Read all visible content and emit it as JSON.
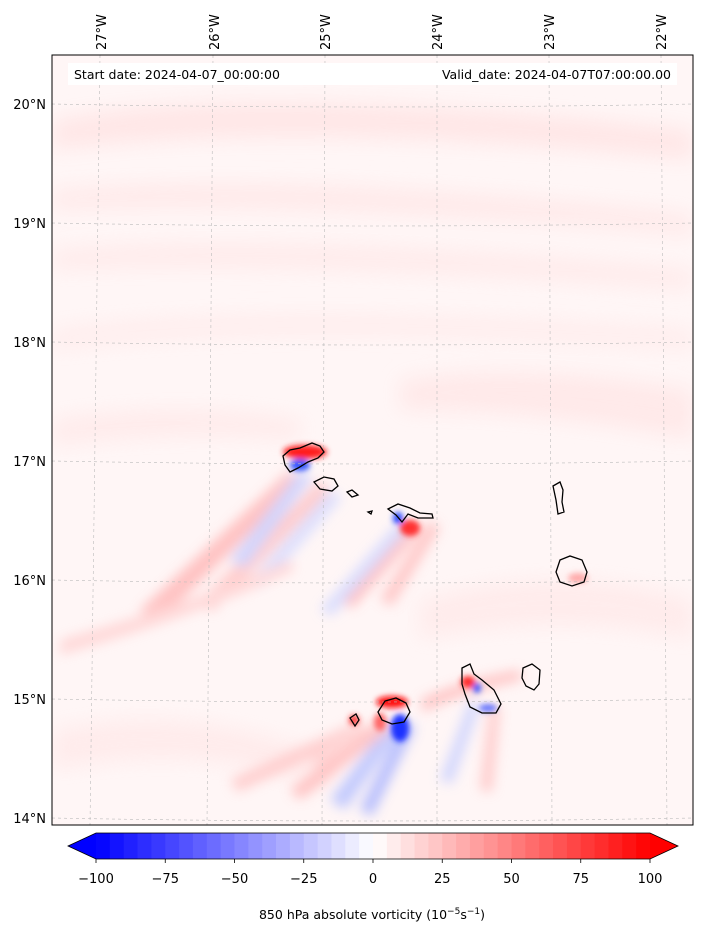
{
  "map": {
    "start_date_label": "Start date: 2024-04-07_00:00:00",
    "valid_date_label": "Valid_date: 2024-04-07T07:00:00.00",
    "lon_labels": [
      "27°W",
      "26°W",
      "25°W",
      "24°W",
      "23°W",
      "22°W"
    ],
    "lat_labels": [
      "20°N",
      "19°N",
      "18°N",
      "17°N",
      "16°N",
      "15°N",
      "14°N"
    ]
  },
  "colorbar": {
    "tick_labels": [
      "−100",
      "−75",
      "−50",
      "−25",
      "0",
      "25",
      "50",
      "75",
      "100"
    ],
    "title_prefix": "850 hPa absolute vorticity (10",
    "title_exp1": "−5",
    "title_mid": "s",
    "title_exp2": "−1",
    "title_suffix": ")",
    "colors": {
      "min": "#0000ff",
      "mid": "#ffffff",
      "max": "#ff0000"
    }
  },
  "chart_data": {
    "type": "heatmap",
    "variable": "850 hPa absolute vorticity",
    "units": "10^-5 s^-1",
    "colorbar_range": [
      -100,
      100
    ],
    "colorbar_ticks": [
      -100,
      -75,
      -50,
      -25,
      0,
      25,
      50,
      75,
      100
    ],
    "lon_range": [
      -27.3,
      -21.95
    ],
    "lat_range": [
      13.95,
      20.45
    ],
    "colormap": "bwr"
  }
}
